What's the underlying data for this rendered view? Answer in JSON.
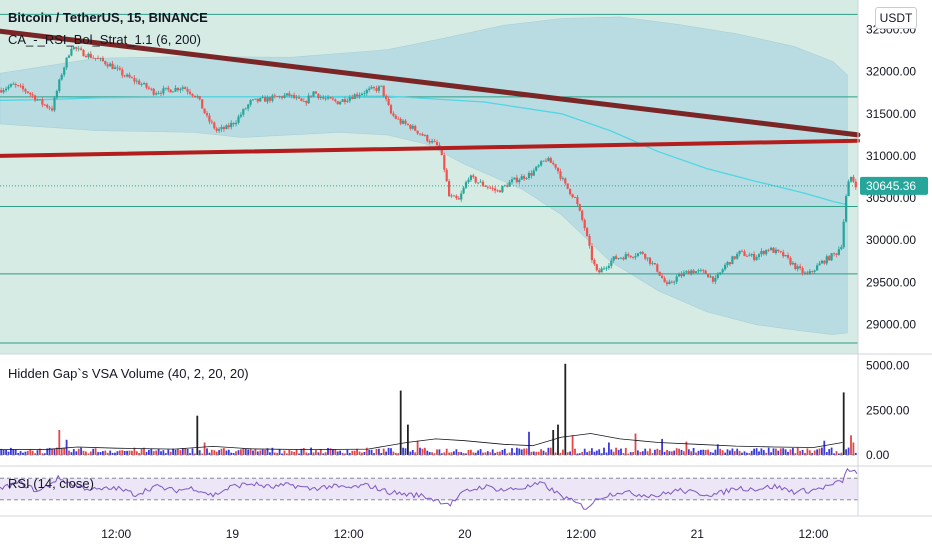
{
  "header": {
    "symbol_title": "Bitcoin / TetherUS, 15, BINANCE",
    "indicator_title": "CA_-_RSI_Bol_Strat_1.1 (6, 200)",
    "currency_badge": "USDT"
  },
  "colors": {
    "up": "#26a69a",
    "down": "#ef5350",
    "band_fill": "#b9dce3",
    "pane_bg": "#d6ebe3",
    "sma": "#4fd6e3",
    "trend_line": "#7a2626",
    "support_line": "#b21e1e",
    "horizontal_level": "#2e9e86",
    "vol_up": "#3b3bd9",
    "vol_down": "#e04848",
    "vol_spike": "#222222",
    "rsi_line": "#7e57c2",
    "price_badge": "#26a69a"
  },
  "chart_data": [
    {
      "type": "candlestick",
      "title": "Bitcoin / TetherUS, 15, BINANCE",
      "indicator": "CA_-_RSI_Bol_Strat_1.1 (6, 200)",
      "y_ticks": [
        "29000.00",
        "29500.00",
        "30000.00",
        "30500.00",
        "31000.00",
        "31500.00",
        "32000.00",
        "32500.00"
      ],
      "ylim": [
        28650,
        32850
      ],
      "x_ticks": [
        "12:00",
        "19",
        "12:00",
        "20",
        "12:00",
        "21",
        "12:00"
      ],
      "x_tick_hours": [
        12,
        24,
        36,
        48,
        60,
        72,
        84
      ],
      "xlim_hours": [
        0,
        88.6
      ],
      "last_price": 30645.36,
      "horizontal_levels": [
        32680,
        31700,
        30400,
        29600,
        28780
      ],
      "trend_line": [
        [
          0,
          32480
        ],
        [
          88.6,
          31250
        ]
      ],
      "support_line": [
        [
          0,
          31000
        ],
        [
          88.6,
          31180
        ]
      ],
      "price_path": [
        [
          0,
          31780
        ],
        [
          1.5,
          31840
        ],
        [
          3,
          31760
        ],
        [
          4.5,
          31620
        ],
        [
          5.5,
          31560
        ],
        [
          6.5,
          31980
        ],
        [
          7.5,
          32300
        ],
        [
          8.5,
          32230
        ],
        [
          10,
          32160
        ],
        [
          11.5,
          32080
        ],
        [
          13,
          31950
        ],
        [
          14.5,
          31870
        ],
        [
          16,
          31760
        ],
        [
          17.5,
          31780
        ],
        [
          19,
          31820
        ],
        [
          20.5,
          31700
        ],
        [
          21.5,
          31450
        ],
        [
          22.5,
          31300
        ],
        [
          23.5,
          31330
        ],
        [
          24.5,
          31420
        ],
        [
          26,
          31640
        ],
        [
          28,
          31680
        ],
        [
          30,
          31720
        ],
        [
          31.5,
          31620
        ],
        [
          32.5,
          31760
        ],
        [
          33.5,
          31680
        ],
        [
          35,
          31640
        ],
        [
          36.5,
          31710
        ],
        [
          38,
          31770
        ],
        [
          39.5,
          31810
        ],
        [
          40.5,
          31500
        ],
        [
          41.5,
          31400
        ],
        [
          42.5,
          31350
        ],
        [
          43.5,
          31270
        ],
        [
          44.5,
          31180
        ],
        [
          45.5,
          31100
        ],
        [
          46,
          30850
        ],
        [
          46.5,
          30520
        ],
        [
          47.5,
          30470
        ],
        [
          48.5,
          30750
        ],
        [
          50,
          30660
        ],
        [
          51.5,
          30580
        ],
        [
          53,
          30700
        ],
        [
          55,
          30790
        ],
        [
          56.5,
          30960
        ],
        [
          57.5,
          30880
        ],
        [
          58.5,
          30650
        ],
        [
          59.5,
          30500
        ],
        [
          60.5,
          30150
        ],
        [
          61.2,
          29800
        ],
        [
          61.8,
          29600
        ],
        [
          62.5,
          29680
        ],
        [
          63.5,
          29780
        ],
        [
          65,
          29820
        ],
        [
          66.5,
          29850
        ],
        [
          68,
          29650
        ],
        [
          69,
          29450
        ],
        [
          70,
          29560
        ],
        [
          71.5,
          29640
        ],
        [
          73,
          29610
        ],
        [
          74,
          29520
        ],
        [
          75,
          29700
        ],
        [
          76.5,
          29850
        ],
        [
          78,
          29800
        ],
        [
          79.5,
          29900
        ],
        [
          81,
          29820
        ],
        [
          82.5,
          29660
        ],
        [
          83.5,
          29580
        ],
        [
          85,
          29740
        ],
        [
          86.5,
          29850
        ],
        [
          87,
          29950
        ],
        [
          87.6,
          30620
        ],
        [
          88,
          30750
        ],
        [
          88.6,
          30645
        ]
      ],
      "sma_path": [
        [
          0,
          31660
        ],
        [
          5,
          31670
        ],
        [
          10,
          31690
        ],
        [
          20,
          31700
        ],
        [
          30,
          31700
        ],
        [
          40,
          31710
        ],
        [
          50,
          31640
        ],
        [
          58,
          31500
        ],
        [
          63,
          31300
        ],
        [
          68,
          31050
        ],
        [
          73,
          30850
        ],
        [
          78,
          30700
        ],
        [
          83,
          30560
        ],
        [
          86,
          30460
        ],
        [
          87.5,
          30420
        ]
      ],
      "band_upper": [
        [
          0,
          31980
        ],
        [
          10,
          32160
        ],
        [
          20,
          32180
        ],
        [
          30,
          32170
        ],
        [
          40,
          32260
        ],
        [
          46,
          32400
        ],
        [
          52,
          32550
        ],
        [
          58,
          32630
        ],
        [
          64,
          32650
        ],
        [
          70,
          32560
        ],
        [
          76,
          32450
        ],
        [
          82,
          32300
        ],
        [
          86,
          32120
        ],
        [
          87.5,
          31960
        ]
      ],
      "band_lower": [
        [
          0,
          31380
        ],
        [
          10,
          31300
        ],
        [
          20,
          31280
        ],
        [
          25,
          31220
        ],
        [
          35,
          31280
        ],
        [
          40,
          31250
        ],
        [
          44,
          31140
        ],
        [
          48,
          30900
        ],
        [
          54,
          30600
        ],
        [
          58,
          30300
        ],
        [
          63,
          29750
        ],
        [
          68,
          29400
        ],
        [
          73,
          29150
        ],
        [
          78,
          29000
        ],
        [
          83,
          28920
        ],
        [
          86,
          28880
        ],
        [
          87.5,
          28900
        ]
      ]
    },
    {
      "type": "bar",
      "title": "Hidden Gap`s VSA Volume (40, 2, 20, 20)",
      "y_ticks": [
        "0.00",
        "2500.00",
        "5000.00"
      ],
      "ylim": [
        0,
        5200
      ],
      "typical_volume": 260,
      "spikes": [
        [
          6.3,
          1400,
          "down"
        ],
        [
          6.9,
          850,
          "up"
        ],
        [
          20.5,
          2200,
          "spike"
        ],
        [
          21.3,
          700,
          "down"
        ],
        [
          41.5,
          3600,
          "spike"
        ],
        [
          42.3,
          1700,
          "spike"
        ],
        [
          43.2,
          800,
          "down"
        ],
        [
          54.8,
          1300,
          "up"
        ],
        [
          57.2,
          1400,
          "spike"
        ],
        [
          57.8,
          1700,
          "spike"
        ],
        [
          58.5,
          5100,
          "spike"
        ],
        [
          59.2,
          1100,
          "down"
        ],
        [
          63,
          700,
          "up"
        ],
        [
          65.8,
          1200,
          "down"
        ],
        [
          68.5,
          900,
          "up"
        ],
        [
          71,
          750,
          "down"
        ],
        [
          74.2,
          600,
          "up"
        ],
        [
          85.2,
          800,
          "up"
        ],
        [
          87.2,
          3500,
          "spike"
        ],
        [
          87.9,
          1100,
          "down"
        ],
        [
          88.3,
          700,
          "down"
        ]
      ],
      "ma_path": [
        [
          0,
          300
        ],
        [
          5,
          320
        ],
        [
          8,
          450
        ],
        [
          12,
          380
        ],
        [
          18,
          330
        ],
        [
          22,
          480
        ],
        [
          26,
          340
        ],
        [
          32,
          300
        ],
        [
          38,
          330
        ],
        [
          42,
          700
        ],
        [
          45,
          900
        ],
        [
          48,
          800
        ],
        [
          52,
          600
        ],
        [
          55,
          520
        ],
        [
          58,
          1000
        ],
        [
          61,
          1200
        ],
        [
          64,
          900
        ],
        [
          68,
          700
        ],
        [
          72,
          600
        ],
        [
          76,
          500
        ],
        [
          80,
          450
        ],
        [
          84,
          420
        ],
        [
          87,
          700
        ]
      ]
    },
    {
      "type": "line",
      "title": "RSI (14, close)",
      "ylim": [
        0,
        100
      ],
      "upper_band": 70,
      "lower_band": 30,
      "rsi_path": [
        [
          0,
          50
        ],
        [
          2,
          62
        ],
        [
          4,
          45
        ],
        [
          6,
          70
        ],
        [
          8,
          55
        ],
        [
          10,
          48
        ],
        [
          12,
          52
        ],
        [
          14,
          40
        ],
        [
          16,
          55
        ],
        [
          18,
          47
        ],
        [
          20,
          52
        ],
        [
          22,
          38
        ],
        [
          24,
          55
        ],
        [
          26,
          60
        ],
        [
          28,
          53
        ],
        [
          30,
          58
        ],
        [
          32,
          50
        ],
        [
          34,
          55
        ],
        [
          36,
          52
        ],
        [
          38,
          57
        ],
        [
          40,
          45
        ],
        [
          42,
          40
        ],
        [
          43.5,
          38
        ],
        [
          45,
          30
        ],
        [
          46.5,
          22
        ],
        [
          48,
          45
        ],
        [
          50,
          55
        ],
        [
          52,
          48
        ],
        [
          54,
          52
        ],
        [
          56,
          60
        ],
        [
          57.5,
          42
        ],
        [
          59,
          28
        ],
        [
          60.5,
          15
        ],
        [
          62,
          35
        ],
        [
          64,
          45
        ],
        [
          66,
          40
        ],
        [
          68,
          38
        ],
        [
          70,
          48
        ],
        [
          72,
          42
        ],
        [
          74,
          40
        ],
        [
          76,
          52
        ],
        [
          78,
          50
        ],
        [
          80,
          55
        ],
        [
          82,
          45
        ],
        [
          84,
          48
        ],
        [
          86,
          58
        ],
        [
          87,
          65
        ],
        [
          87.6,
          88
        ],
        [
          88.2,
          82
        ],
        [
          88.6,
          76
        ]
      ]
    }
  ]
}
